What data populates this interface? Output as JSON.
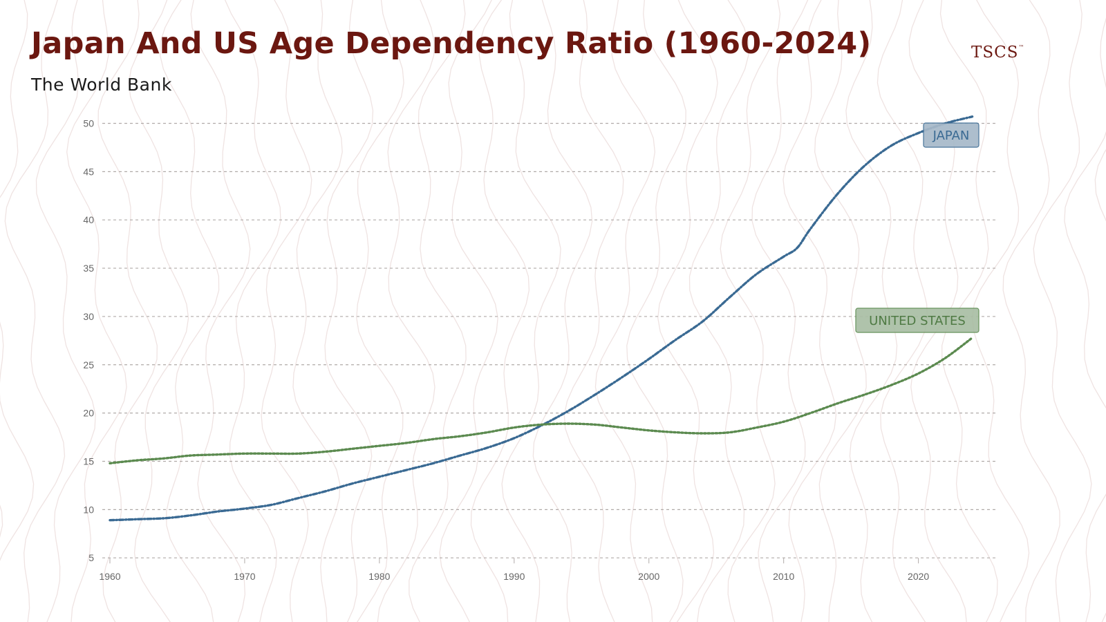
{
  "header": {
    "title": "Japan And US Age Dependency Ratio (1960-2024)",
    "subtitle": "The World Bank",
    "logo_text": "TSCS",
    "logo_mark": "™"
  },
  "colors": {
    "title": "#6b1710",
    "japan": "#3a6a93",
    "united_states": "#5b8a4f",
    "grid": "#b0aaa8",
    "background_contour": "#efe3e2"
  },
  "chart_data": {
    "type": "line",
    "title": "Japan And US Age Dependency Ratio (1960-2024)",
    "xlabel": "",
    "ylabel": "",
    "xlim": [
      1960,
      2024
    ],
    "ylim": [
      5,
      50
    ],
    "x_ticks": [
      1960,
      1970,
      1980,
      1990,
      2000,
      2010,
      2020
    ],
    "y_ticks": [
      5,
      10,
      15,
      20,
      25,
      30,
      35,
      40,
      45,
      50
    ],
    "grid": "horizontal dashed",
    "legend": "inline labels at right",
    "series": [
      {
        "name": "JAPAN",
        "color": "#3a6a93",
        "x": [
          1960,
          1962,
          1964,
          1966,
          1968,
          1970,
          1972,
          1974,
          1976,
          1978,
          1980,
          1982,
          1984,
          1986,
          1988,
          1990,
          1992,
          1994,
          1996,
          1998,
          2000,
          2002,
          2004,
          2006,
          2008,
          2010,
          2011,
          2012,
          2014,
          2016,
          2018,
          2020,
          2022,
          2024
        ],
        "y": [
          8.9,
          9.0,
          9.1,
          9.4,
          9.8,
          10.1,
          10.5,
          11.2,
          11.9,
          12.7,
          13.4,
          14.1,
          14.8,
          15.6,
          16.4,
          17.4,
          18.7,
          20.2,
          21.9,
          23.7,
          25.6,
          27.6,
          29.5,
          32.0,
          34.4,
          36.2,
          37.1,
          39.1,
          42.7,
          45.6,
          47.7,
          49.0,
          50.0,
          50.7
        ]
      },
      {
        "name": "UNITED STATES",
        "color": "#5b8a4f",
        "x": [
          1960,
          1962,
          1964,
          1966,
          1968,
          1970,
          1972,
          1974,
          1976,
          1978,
          1980,
          1982,
          1984,
          1986,
          1988,
          1990,
          1992,
          1994,
          1996,
          1998,
          2000,
          2002,
          2004,
          2006,
          2008,
          2010,
          2012,
          2014,
          2016,
          2018,
          2020,
          2022,
          2024
        ],
        "y": [
          14.8,
          15.1,
          15.3,
          15.6,
          15.7,
          15.8,
          15.8,
          15.8,
          16.0,
          16.3,
          16.6,
          16.9,
          17.3,
          17.6,
          18.0,
          18.5,
          18.8,
          18.9,
          18.8,
          18.5,
          18.2,
          18.0,
          17.9,
          18.0,
          18.5,
          19.1,
          20.0,
          21.0,
          21.9,
          22.9,
          24.1,
          25.7,
          27.8
        ]
      }
    ],
    "annotations": [
      {
        "series": "JAPAN",
        "text": "JAPAN"
      },
      {
        "series": "UNITED STATES",
        "text": "UNITED STATES"
      }
    ]
  }
}
